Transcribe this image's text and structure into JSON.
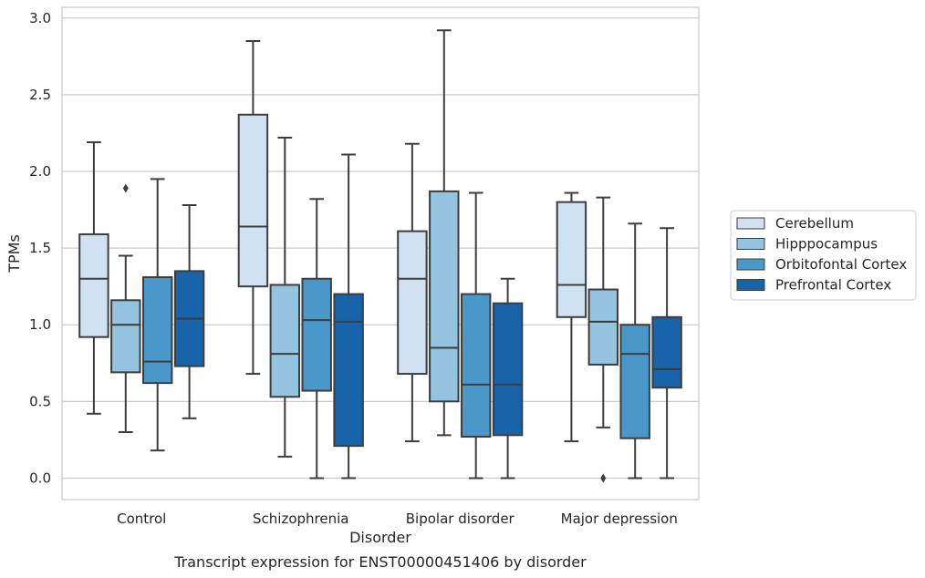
{
  "chart_data": {
    "type": "box",
    "title": "",
    "caption": "Transcript expression for ENST00000451406 by disorder",
    "xlabel": "Disorder",
    "ylabel": "TPMs",
    "ylim": [
      -0.14,
      3.07
    ],
    "yticks": [
      0.0,
      0.5,
      1.0,
      1.5,
      2.0,
      2.5,
      3.0
    ],
    "ytick_labels": [
      "0.0",
      "0.5",
      "1.0",
      "1.5",
      "2.0",
      "2.5",
      "3.0"
    ],
    "categories": [
      "Control",
      "Schizophrenia",
      "Bipolar disorder",
      "Major depression"
    ],
    "grid": "horizontal",
    "legend_position": "right",
    "series": [
      {
        "name": "Cerebellum",
        "color": "#d0e1f2",
        "boxes": [
          {
            "whislo": 0.42,
            "q1": 0.92,
            "med": 1.3,
            "q3": 1.59,
            "whishi": 2.19,
            "fliers": []
          },
          {
            "whislo": 0.68,
            "q1": 1.25,
            "med": 1.64,
            "q3": 2.37,
            "whishi": 2.85,
            "fliers": []
          },
          {
            "whislo": 0.24,
            "q1": 0.68,
            "med": 1.3,
            "q3": 1.61,
            "whishi": 2.18,
            "fliers": []
          },
          {
            "whislo": 0.24,
            "q1": 1.05,
            "med": 1.26,
            "q3": 1.8,
            "whishi": 1.86,
            "fliers": []
          }
        ]
      },
      {
        "name": "Hipppocampus",
        "color": "#94c4df",
        "boxes": [
          {
            "whislo": 0.3,
            "q1": 0.69,
            "med": 1.0,
            "q3": 1.16,
            "whishi": 1.45,
            "fliers": [
              1.89
            ]
          },
          {
            "whislo": 0.14,
            "q1": 0.53,
            "med": 0.81,
            "q3": 1.26,
            "whishi": 2.22,
            "fliers": []
          },
          {
            "whislo": 0.28,
            "q1": 0.5,
            "med": 0.85,
            "q3": 1.87,
            "whishi": 2.92,
            "fliers": []
          },
          {
            "whislo": 0.33,
            "q1": 0.74,
            "med": 1.02,
            "q3": 1.23,
            "whishi": 1.83,
            "fliers": [
              0.0
            ]
          }
        ]
      },
      {
        "name": "Orbitofontal Cortex",
        "color": "#4a98c9",
        "boxes": [
          {
            "whislo": 0.18,
            "q1": 0.62,
            "med": 0.76,
            "q3": 1.31,
            "whishi": 1.95,
            "fliers": []
          },
          {
            "whislo": 0.0,
            "q1": 0.57,
            "med": 1.03,
            "q3": 1.3,
            "whishi": 1.82,
            "fliers": []
          },
          {
            "whislo": 0.0,
            "q1": 0.27,
            "med": 0.61,
            "q3": 1.2,
            "whishi": 1.86,
            "fliers": []
          },
          {
            "whislo": 0.0,
            "q1": 0.26,
            "med": 0.81,
            "q3": 1.0,
            "whishi": 1.66,
            "fliers": []
          }
        ]
      },
      {
        "name": "Prefrontal Cortex",
        "color": "#1764ab",
        "boxes": [
          {
            "whislo": 0.39,
            "q1": 0.73,
            "med": 1.04,
            "q3": 1.35,
            "whishi": 1.78,
            "fliers": []
          },
          {
            "whislo": 0.0,
            "q1": 0.21,
            "med": 1.02,
            "q3": 1.2,
            "whishi": 2.11,
            "fliers": []
          },
          {
            "whislo": 0.0,
            "q1": 0.28,
            "med": 0.61,
            "q3": 1.14,
            "whishi": 1.3,
            "fliers": []
          },
          {
            "whislo": 0.0,
            "q1": 0.59,
            "med": 0.71,
            "q3": 1.05,
            "whishi": 1.63,
            "fliers": []
          }
        ]
      }
    ]
  }
}
